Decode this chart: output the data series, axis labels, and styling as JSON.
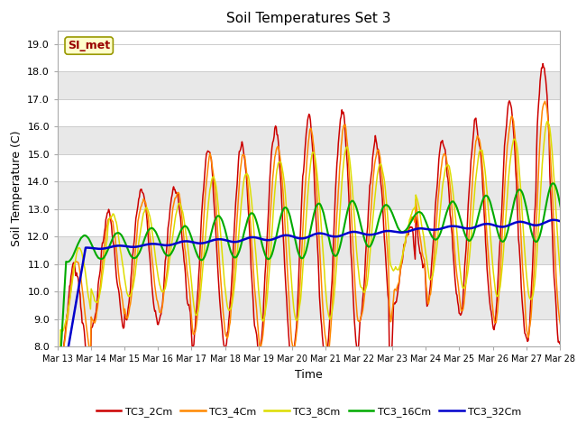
{
  "title": "Soil Temperatures Set 3",
  "xlabel": "Time",
  "ylabel": "Soil Temperature (C)",
  "ylim": [
    8.0,
    19.5
  ],
  "yticks": [
    8.0,
    9.0,
    10.0,
    11.0,
    12.0,
    13.0,
    14.0,
    15.0,
    16.0,
    17.0,
    18.0,
    19.0
  ],
  "series_colors": {
    "TC3_2Cm": "#cc0000",
    "TC3_4Cm": "#ff8800",
    "TC3_8Cm": "#dddd00",
    "TC3_16Cm": "#00aa00",
    "TC3_32Cm": "#0000cc"
  },
  "series_order": [
    "TC3_2Cm",
    "TC3_4Cm",
    "TC3_8Cm",
    "TC3_16Cm",
    "TC3_32Cm"
  ],
  "band_colors": [
    "#ffffff",
    "#e8e8e8"
  ],
  "annotation_label": "SI_met",
  "annotation_text_color": "#990000",
  "annotation_box_color": "#ffffcc",
  "n_days": 16,
  "start_day": 13,
  "day_labels": [
    "Mar 13",
    "Mar 14",
    "Mar 15",
    "Mar 16",
    "Mar 17",
    "Mar 18",
    "Mar 19",
    "Mar 20",
    "Mar 21",
    "Mar 22",
    "Mar 23",
    "Mar 24",
    "Mar 25",
    "Mar 26",
    "Mar 27",
    "Mar 28"
  ]
}
